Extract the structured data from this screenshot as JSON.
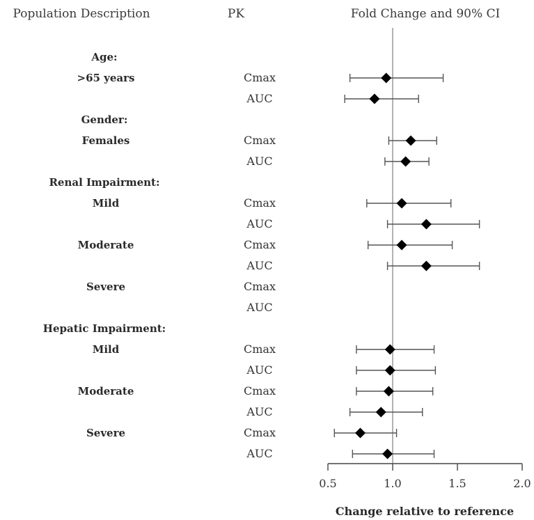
{
  "chart_data": {
    "type": "forest",
    "headers": {
      "population": "Population Description",
      "pk": "PK",
      "effect": "Fold Change and 90% CI"
    },
    "xlabel": "Change relative to reference",
    "xlim": [
      0.5,
      2.0
    ],
    "reference_line": 1.0,
    "xticks": [
      "0.5",
      "1.0",
      "1.5",
      "2.0"
    ],
    "rows": [
      {
        "group": "Age:",
        "subgroup": "",
        "pk": "",
        "est": null,
        "lo": null,
        "hi": null
      },
      {
        "group": "",
        "subgroup": ">65 years",
        "pk": "Cmax",
        "est": 0.95,
        "lo": 0.67,
        "hi": 1.39
      },
      {
        "group": "",
        "subgroup": "",
        "pk": "AUC",
        "est": 0.86,
        "lo": 0.63,
        "hi": 1.2
      },
      {
        "group": "Gender:",
        "subgroup": "",
        "pk": "",
        "est": null,
        "lo": null,
        "hi": null
      },
      {
        "group": "",
        "subgroup": "Females",
        "pk": "Cmax",
        "est": 1.14,
        "lo": 0.97,
        "hi": 1.34
      },
      {
        "group": "",
        "subgroup": "",
        "pk": "AUC",
        "est": 1.1,
        "lo": 0.94,
        "hi": 1.28
      },
      {
        "group": "Renal Impairment:",
        "subgroup": "",
        "pk": "",
        "est": null,
        "lo": null,
        "hi": null
      },
      {
        "group": "",
        "subgroup": "Mild",
        "pk": "Cmax",
        "est": 1.07,
        "lo": 0.8,
        "hi": 1.45
      },
      {
        "group": "",
        "subgroup": "",
        "pk": "AUC",
        "est": 1.26,
        "lo": 0.96,
        "hi": 1.67
      },
      {
        "group": "",
        "subgroup": "Moderate",
        "pk": "Cmax",
        "est": 1.07,
        "lo": 0.81,
        "hi": 1.46
      },
      {
        "group": "",
        "subgroup": "",
        "pk": "AUC",
        "est": 1.26,
        "lo": 0.96,
        "hi": 1.67
      },
      {
        "group": "",
        "subgroup": "Severe",
        "pk": "Cmax",
        "est": null,
        "lo": null,
        "hi": null
      },
      {
        "group": "",
        "subgroup": "",
        "pk": "AUC",
        "est": null,
        "lo": null,
        "hi": null
      },
      {
        "group": "Hepatic Impairment:",
        "subgroup": "",
        "pk": "",
        "est": null,
        "lo": null,
        "hi": null
      },
      {
        "group": "",
        "subgroup": "Mild",
        "pk": "Cmax",
        "est": 0.98,
        "lo": 0.72,
        "hi": 1.32
      },
      {
        "group": "",
        "subgroup": "",
        "pk": "AUC",
        "est": 0.98,
        "lo": 0.72,
        "hi": 1.33
      },
      {
        "group": "",
        "subgroup": "Moderate",
        "pk": "Cmax",
        "est": 0.97,
        "lo": 0.72,
        "hi": 1.31
      },
      {
        "group": "",
        "subgroup": "",
        "pk": "AUC",
        "est": 0.91,
        "lo": 0.67,
        "hi": 1.23
      },
      {
        "group": "",
        "subgroup": "Severe",
        "pk": "Cmax",
        "est": 0.75,
        "lo": 0.55,
        "hi": 1.03
      },
      {
        "group": "",
        "subgroup": "",
        "pk": "AUC",
        "est": 0.96,
        "lo": 0.69,
        "hi": 1.32
      }
    ]
  }
}
